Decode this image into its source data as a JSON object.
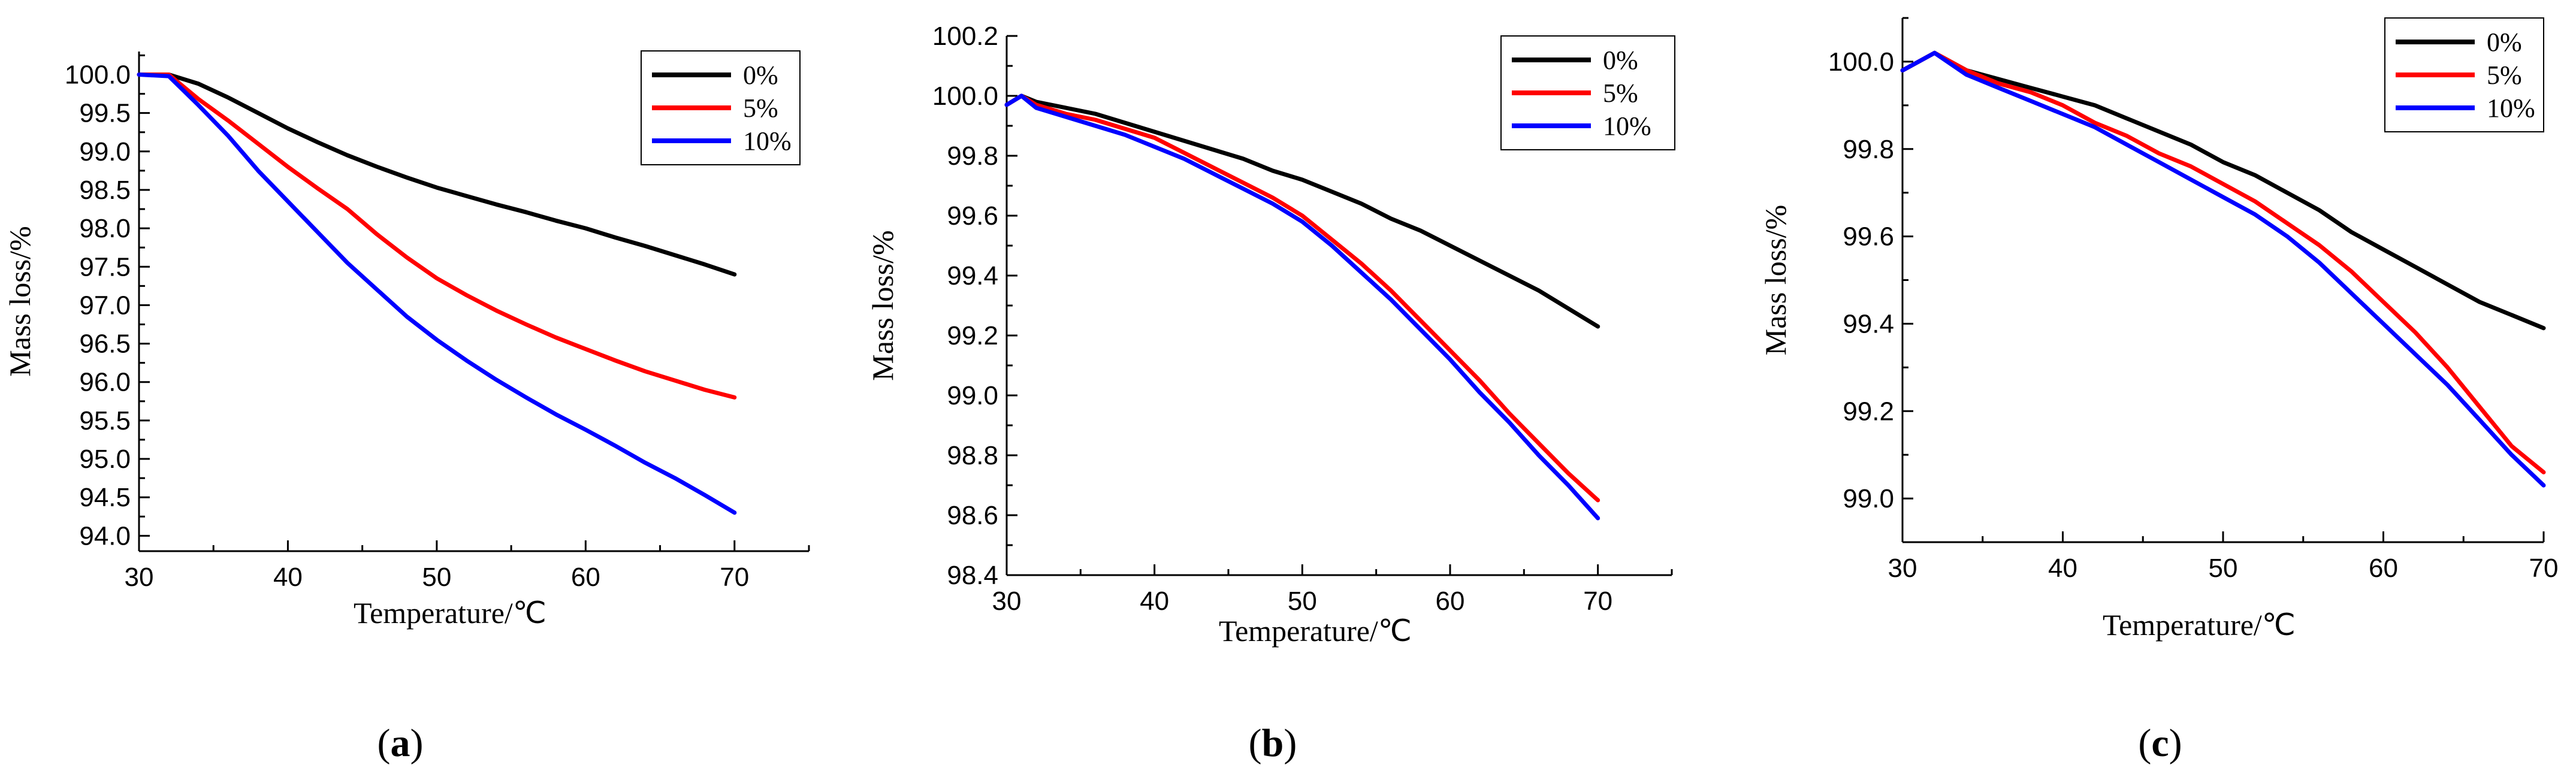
{
  "chart_data": [
    {
      "type": "line",
      "panel_label": "(a)",
      "panel_letter": "a",
      "xlabel": "Temperature/℃",
      "ylabel": "Mass loss/%",
      "xlim": [
        30,
        75
      ],
      "ylim": [
        93.8,
        100.3
      ],
      "xticks": [
        30,
        40,
        50,
        60,
        70
      ],
      "yticks": [
        94.0,
        94.5,
        95.0,
        95.5,
        96.0,
        96.5,
        97.0,
        97.5,
        98.0,
        98.5,
        99.0,
        99.5,
        100.0
      ],
      "ytick_decimals": 1,
      "legend_position": "top-right",
      "series": [
        {
          "name": "0%",
          "color": "#000000",
          "x": [
            30,
            32,
            34,
            36,
            38,
            40,
            42,
            44,
            46,
            48,
            50,
            52,
            54,
            56,
            58,
            60,
            62,
            64,
            66,
            68,
            70
          ],
          "y": [
            100.0,
            100.0,
            99.88,
            99.7,
            99.5,
            99.3,
            99.12,
            98.95,
            98.8,
            98.66,
            98.53,
            98.42,
            98.31,
            98.21,
            98.1,
            98.0,
            97.88,
            97.77,
            97.65,
            97.53,
            97.4
          ]
        },
        {
          "name": "5%",
          "color": "#ff0000",
          "x": [
            30,
            32,
            34,
            36,
            38,
            40,
            42,
            44,
            46,
            48,
            50,
            52,
            54,
            56,
            58,
            60,
            62,
            64,
            66,
            68,
            70
          ],
          "y": [
            100.0,
            100.0,
            99.68,
            99.4,
            99.1,
            98.8,
            98.52,
            98.25,
            97.92,
            97.62,
            97.35,
            97.13,
            96.93,
            96.75,
            96.58,
            96.43,
            96.28,
            96.14,
            96.02,
            95.9,
            95.8
          ]
        },
        {
          "name": "10%",
          "color": "#0000ff",
          "x": [
            30,
            32,
            34,
            36,
            38,
            40,
            42,
            44,
            46,
            48,
            50,
            52,
            54,
            56,
            58,
            60,
            62,
            64,
            66,
            68,
            70
          ],
          "y": [
            100.0,
            99.98,
            99.6,
            99.2,
            98.75,
            98.35,
            97.95,
            97.55,
            97.2,
            96.85,
            96.55,
            96.28,
            96.03,
            95.8,
            95.58,
            95.38,
            95.17,
            94.95,
            94.75,
            94.53,
            94.3
          ]
        }
      ]
    },
    {
      "type": "line",
      "panel_label": "(b)",
      "panel_letter": "b",
      "xlabel": "Temperature/℃",
      "ylabel": "Mass loss/%",
      "xlim": [
        30,
        75
      ],
      "ylim": [
        98.4,
        100.2
      ],
      "xticks": [
        30,
        40,
        50,
        60,
        70
      ],
      "yticks": [
        98.4,
        98.6,
        98.8,
        99.0,
        99.2,
        99.4,
        99.6,
        99.8,
        100.0,
        100.2
      ],
      "ytick_decimals": 1,
      "legend_position": "top-right",
      "series": [
        {
          "name": "0%",
          "color": "#000000",
          "x": [
            30,
            31,
            32,
            34,
            36,
            38,
            40,
            42,
            44,
            46,
            48,
            50,
            52,
            54,
            56,
            58,
            60,
            62,
            64,
            66,
            68,
            70
          ],
          "y": [
            99.97,
            100.0,
            99.98,
            99.96,
            99.94,
            99.91,
            99.88,
            99.85,
            99.82,
            99.79,
            99.75,
            99.72,
            99.68,
            99.64,
            99.59,
            99.55,
            99.5,
            99.45,
            99.4,
            99.35,
            99.29,
            99.23
          ]
        },
        {
          "name": "5%",
          "color": "#ff0000",
          "x": [
            30,
            31,
            32,
            34,
            36,
            38,
            40,
            42,
            44,
            46,
            48,
            50,
            52,
            54,
            56,
            58,
            60,
            62,
            64,
            66,
            68,
            70
          ],
          "y": [
            99.97,
            100.0,
            99.97,
            99.94,
            99.92,
            99.89,
            99.86,
            99.81,
            99.76,
            99.71,
            99.66,
            99.6,
            99.52,
            99.44,
            99.35,
            99.25,
            99.15,
            99.05,
            98.94,
            98.84,
            98.74,
            98.65
          ]
        },
        {
          "name": "10%",
          "color": "#0000ff",
          "x": [
            30,
            31,
            32,
            34,
            36,
            38,
            40,
            42,
            44,
            46,
            48,
            50,
            52,
            54,
            56,
            58,
            60,
            62,
            64,
            66,
            68,
            70
          ],
          "y": [
            99.97,
            100.0,
            99.96,
            99.93,
            99.9,
            99.87,
            99.83,
            99.79,
            99.74,
            99.69,
            99.64,
            99.58,
            99.5,
            99.41,
            99.32,
            99.22,
            99.12,
            99.01,
            98.91,
            98.8,
            98.7,
            98.59
          ]
        }
      ]
    },
    {
      "type": "line",
      "panel_label": "(c)",
      "panel_letter": "c",
      "xlabel": "Temperature/℃",
      "ylabel": "Mass loss/%",
      "xlim": [
        30,
        70
      ],
      "ylim": [
        98.9,
        100.1
      ],
      "xticks": [
        30,
        40,
        50,
        60,
        70
      ],
      "yticks": [
        99.0,
        99.2,
        99.4,
        99.6,
        99.8,
        100.0
      ],
      "ytick_decimals": 1,
      "legend_position": "top-right",
      "series": [
        {
          "name": "0%",
          "color": "#000000",
          "x": [
            30,
            31,
            32,
            34,
            36,
            38,
            40,
            42,
            44,
            46,
            48,
            50,
            52,
            54,
            56,
            58,
            60,
            62,
            64,
            66,
            68,
            70
          ],
          "y": [
            99.98,
            100.0,
            100.02,
            99.98,
            99.96,
            99.94,
            99.92,
            99.9,
            99.87,
            99.84,
            99.81,
            99.77,
            99.74,
            99.7,
            99.66,
            99.61,
            99.57,
            99.53,
            99.49,
            99.45,
            99.42,
            99.39
          ]
        },
        {
          "name": "5%",
          "color": "#ff0000",
          "x": [
            30,
            31,
            32,
            34,
            36,
            38,
            40,
            42,
            44,
            46,
            48,
            50,
            52,
            54,
            56,
            58,
            60,
            62,
            64,
            66,
            68,
            70
          ],
          "y": [
            99.98,
            100.0,
            100.02,
            99.98,
            99.95,
            99.93,
            99.9,
            99.86,
            99.83,
            99.79,
            99.76,
            99.72,
            99.68,
            99.63,
            99.58,
            99.52,
            99.45,
            99.38,
            99.3,
            99.21,
            99.12,
            99.06
          ]
        },
        {
          "name": "10%",
          "color": "#0000ff",
          "x": [
            30,
            31,
            32,
            34,
            36,
            38,
            40,
            42,
            44,
            46,
            48,
            50,
            52,
            54,
            56,
            58,
            60,
            62,
            64,
            66,
            68,
            70
          ],
          "y": [
            99.98,
            100.0,
            100.02,
            99.97,
            99.94,
            99.91,
            99.88,
            99.85,
            99.81,
            99.77,
            99.73,
            99.69,
            99.65,
            99.6,
            99.54,
            99.47,
            99.4,
            99.33,
            99.26,
            99.18,
            99.1,
            99.03
          ]
        }
      ]
    }
  ]
}
